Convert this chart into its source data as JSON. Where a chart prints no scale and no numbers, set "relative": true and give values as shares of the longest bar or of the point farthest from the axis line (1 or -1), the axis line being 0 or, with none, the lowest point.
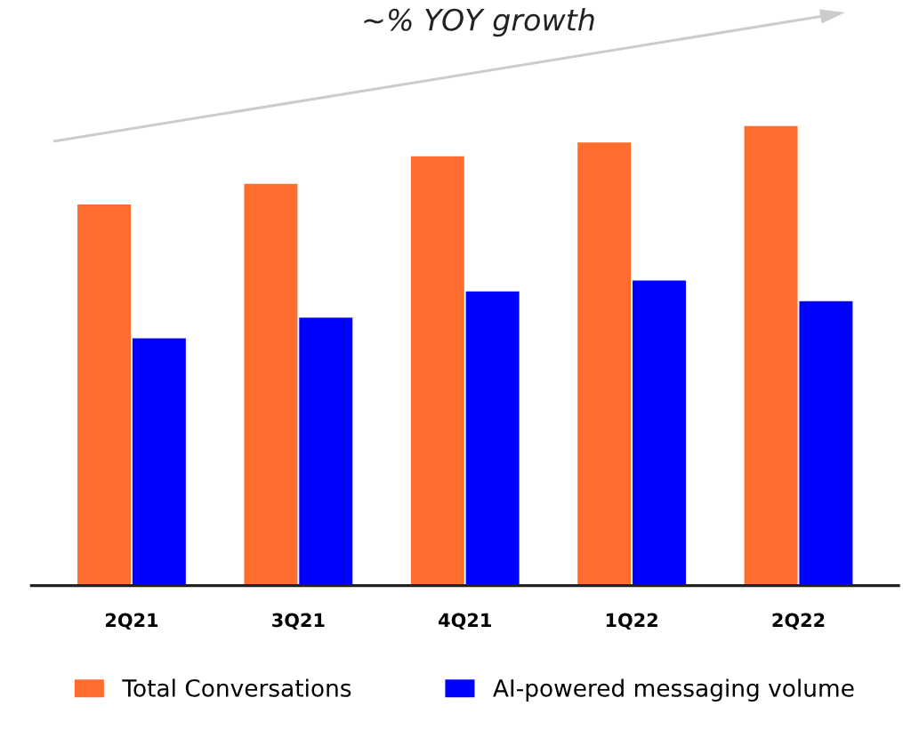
{
  "chart_data": {
    "type": "bar",
    "title": "~% YOY growth",
    "relative": true,
    "categories": [
      "2Q21",
      "3Q21",
      "4Q21",
      "1Q22",
      "2Q22"
    ],
    "series": [
      {
        "name": "Total Conversations",
        "color": "#ff6d2e",
        "values": [
          0.829,
          0.874,
          0.934,
          0.964,
          1
        ]
      },
      {
        "name": "AI-powered messaging volume",
        "color": "#0000ff",
        "values": [
          0.538,
          0.583,
          0.64,
          0.664,
          0.619
        ]
      }
    ],
    "legend": "bottom",
    "grid": false
  }
}
